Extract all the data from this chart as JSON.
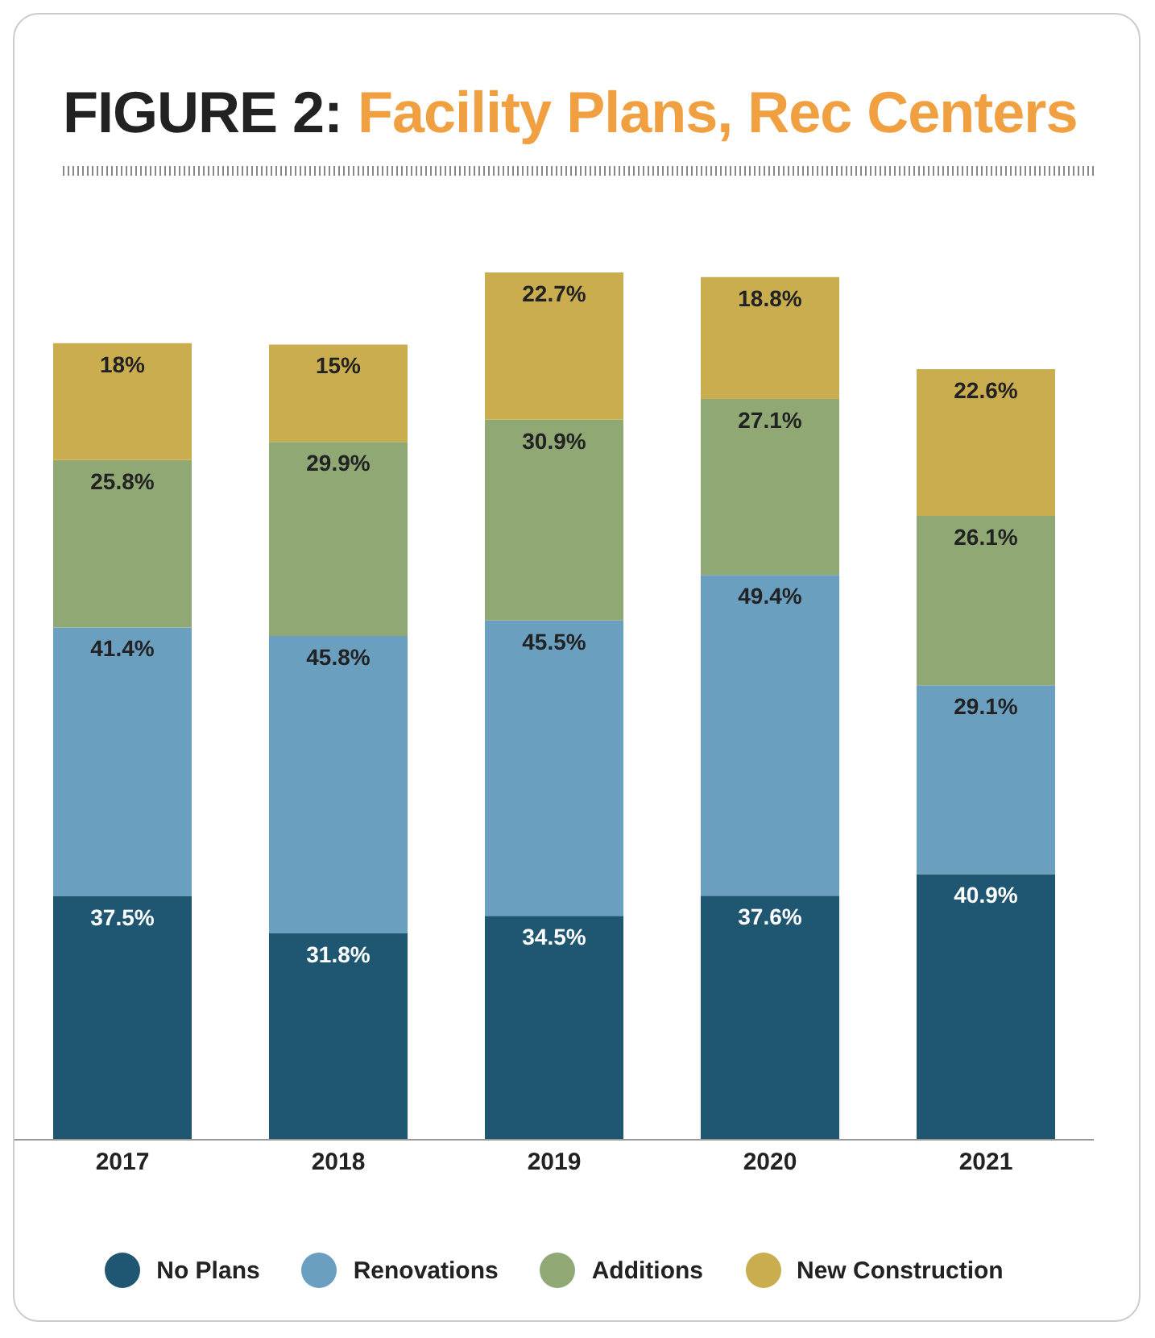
{
  "chart_data": {
    "type": "bar",
    "title": "FIGURE 2: Facility Plans, Rec Centers",
    "categories": [
      "2017",
      "2018",
      "2019",
      "2020",
      "2021"
    ],
    "stacked": true,
    "legend": "bottom",
    "grid": false,
    "series": [
      {
        "name": "No Plans",
        "color": "#1f5773",
        "values": [
          37.5,
          31.8,
          34.5,
          37.6,
          40.9
        ],
        "value_labels": [
          "37.5%",
          "31.8%",
          "34.5%",
          "37.6%",
          "40.9%"
        ]
      },
      {
        "name": "Renovations",
        "color": "#6a9fc0",
        "values": [
          41.4,
          45.8,
          45.5,
          49.4,
          29.1
        ],
        "value_labels": [
          "41.4%",
          "45.8%",
          "45.5%",
          "49.4%",
          "29.1%"
        ]
      },
      {
        "name": "Additions",
        "color": "#8fa874",
        "values": [
          25.8,
          29.9,
          30.9,
          27.1,
          26.1
        ],
        "value_labels": [
          "25.8%",
          "29.9%",
          "30.9%",
          "27.1%",
          "26.1%"
        ]
      },
      {
        "name": "New Construction",
        "color": "#c9ad4e",
        "values": [
          18,
          15,
          22.7,
          18.8,
          22.6
        ],
        "value_labels": [
          "18%",
          "15%",
          "22.7%",
          "18.8%",
          "22.6%"
        ]
      }
    ]
  }
}
